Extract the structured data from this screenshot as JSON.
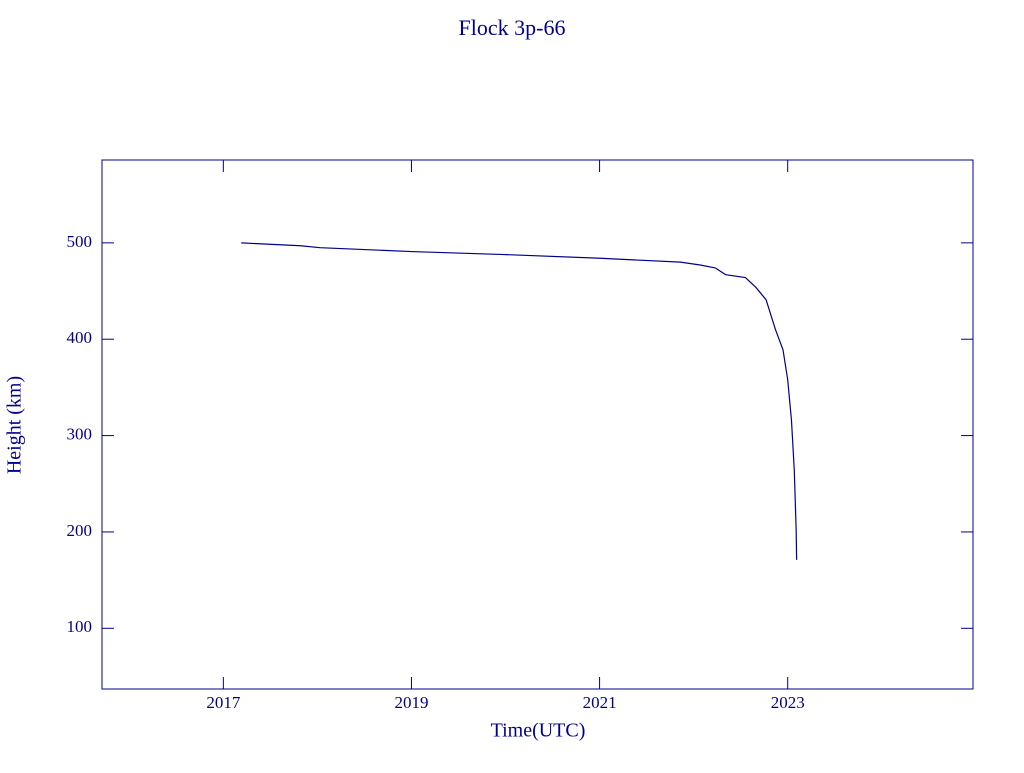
{
  "chart_data": {
    "type": "line",
    "title": "Flock 3p-66",
    "x_label": "Time(UTC)",
    "y_label": "Height (km)",
    "x": [
      2017.19,
      2017.82,
      2018.03,
      2019.0,
      2019.95,
      2021.01,
      2021.86,
      2022.07,
      2022.23,
      2022.34,
      2022.55,
      2022.66,
      2022.77,
      2022.87,
      2022.95,
      2023.0,
      2023.04,
      2023.07,
      2023.09,
      2023.095
    ],
    "series": [
      {
        "color": "#00008b",
        "values": [
          500,
          497,
          495,
          491,
          488,
          484,
          480,
          477,
          474,
          467,
          464,
          454,
          441,
          410,
          389,
          358,
          316,
          264,
          202,
          171
        ]
      }
    ],
    "xlim": [
      2015.71,
      2024.97
    ],
    "xticks": [
      2017,
      2019,
      2021,
      2023
    ],
    "ylim": [
      37,
      586
    ],
    "yticks": [
      100,
      200,
      300,
      400,
      500
    ]
  }
}
